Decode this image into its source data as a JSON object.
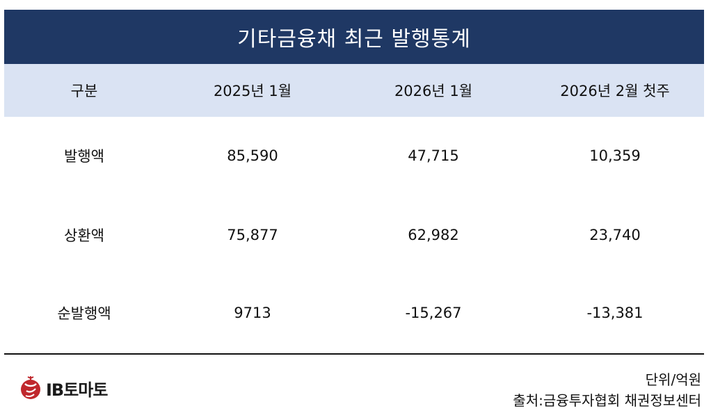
{
  "chart_data": {
    "type": "table",
    "title": "기타금융채 최근 발행통계",
    "columns": [
      "구분",
      "2025년 1월",
      "2026년 1월",
      "2026년 2월 첫주"
    ],
    "rows": [
      {
        "label": "발행액",
        "values": [
          "85,590",
          "47,715",
          "10,359"
        ]
      },
      {
        "label": "상환액",
        "values": [
          "75,877",
          "62,982",
          "23,740"
        ]
      },
      {
        "label": "순발행액",
        "values": [
          "9713",
          "-15,267",
          "-13,381"
        ]
      }
    ]
  },
  "footer": {
    "unit": "단위/억원",
    "source": "출처:금융투자협회 채권정보센터"
  },
  "logo": {
    "text": "IB토마토",
    "icon": "tomato-logo-icon",
    "color": "#c0282d"
  },
  "colors": {
    "title_bg": "#1f3864",
    "header_bg": "#dae3f3"
  }
}
